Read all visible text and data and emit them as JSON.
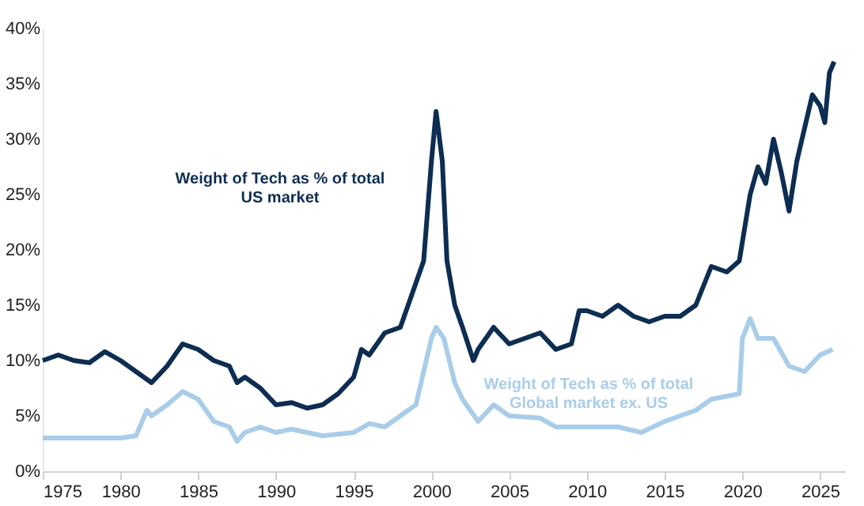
{
  "chart_data": {
    "type": "line",
    "xlim": [
      1975,
      2026.6
    ],
    "xticks": [
      1975,
      1980,
      1985,
      1990,
      1995,
      2000,
      2005,
      2010,
      2015,
      2020,
      2025
    ],
    "ylim": [
      0,
      40
    ],
    "yticks": [
      {
        "value": 0,
        "label": "0%"
      },
      {
        "value": 5,
        "label": "5%"
      },
      {
        "value": 10,
        "label": "10%"
      },
      {
        "value": 15,
        "label": "15%"
      },
      {
        "value": 20,
        "label": "20%"
      },
      {
        "value": 25,
        "label": "25%"
      },
      {
        "value": 30,
        "label": "30%"
      },
      {
        "value": 35,
        "label": "35%"
      },
      {
        "value": 40,
        "label": "40%"
      }
    ],
    "grid": false,
    "legend": false,
    "marker": "none",
    "line_style": "solid",
    "series": [
      {
        "name": "Weight of Tech as % of total\nUS market",
        "color": "#0d2d52",
        "x": [
          1975,
          1976,
          1977,
          1978,
          1979,
          1980,
          1981,
          1982,
          1983,
          1984,
          1985,
          1986,
          1987,
          1987.5,
          1988,
          1989,
          1990,
          1991,
          1992,
          1993,
          1994,
          1995,
          1995.5,
          1996,
          1997,
          1998,
          1999,
          1999.5,
          2000,
          2000.3,
          2000.7,
          2001,
          2001.5,
          2002,
          2002.7,
          2003,
          2004,
          2005,
          2006,
          2007,
          2008,
          2009,
          2009.5,
          2010,
          2011,
          2012,
          2013,
          2014,
          2015,
          2016,
          2017,
          2018,
          2019,
          2019.8,
          2020.5,
          2021,
          2021.5,
          2022,
          2022.5,
          2023,
          2023.5,
          2024,
          2024.5,
          2025,
          2025.3,
          2025.6,
          2025.9
        ],
        "values": [
          10,
          10.5,
          10,
          9.8,
          10.8,
          10,
          9,
          8,
          9.5,
          11.5,
          11,
          10,
          9.5,
          8,
          8.5,
          7.5,
          6,
          6.2,
          5.7,
          6,
          7,
          8.5,
          11,
          10.5,
          12.5,
          13,
          17,
          19,
          28,
          32.5,
          28,
          19,
          15,
          13,
          10,
          11,
          13,
          11.5,
          12,
          12.5,
          11,
          11.5,
          14.5,
          14.5,
          14,
          15,
          14,
          13.5,
          14,
          14,
          15,
          18.5,
          18,
          19,
          25,
          27.5,
          26,
          30,
          27,
          23.5,
          28,
          31,
          34,
          33,
          31.5,
          36,
          37
        ]
      },
      {
        "name": "Weight of Tech as % of total\nGlobal market ex. US",
        "color": "#a9cde9",
        "x": [
          1975,
          1977,
          1980,
          1981,
          1981.7,
          1982,
          1983,
          1984,
          1985,
          1986,
          1987,
          1987.5,
          1988,
          1989,
          1990,
          1991,
          1992,
          1993,
          1995,
          1996,
          1997,
          1998,
          1999,
          2000,
          2000.3,
          2000.8,
          2001.5,
          2002,
          2003,
          2004,
          2005,
          2007,
          2008,
          2010,
          2012,
          2013.5,
          2015,
          2017,
          2018,
          2019.8,
          2020,
          2020.5,
          2021,
          2022,
          2023,
          2024,
          2025,
          2025.8
        ],
        "values": [
          3,
          3,
          3,
          3.2,
          5.5,
          5,
          6,
          7.2,
          6.5,
          4.5,
          4,
          2.7,
          3.5,
          4,
          3.5,
          3.8,
          3.5,
          3.2,
          3.5,
          4.3,
          4,
          5,
          6,
          12,
          13,
          12,
          8,
          6.5,
          4.5,
          6,
          5,
          4.8,
          4,
          4,
          4,
          3.5,
          4.5,
          5.5,
          6.5,
          7,
          12,
          13.8,
          12,
          12,
          9.5,
          9,
          10.5,
          11
        ]
      }
    ]
  }
}
